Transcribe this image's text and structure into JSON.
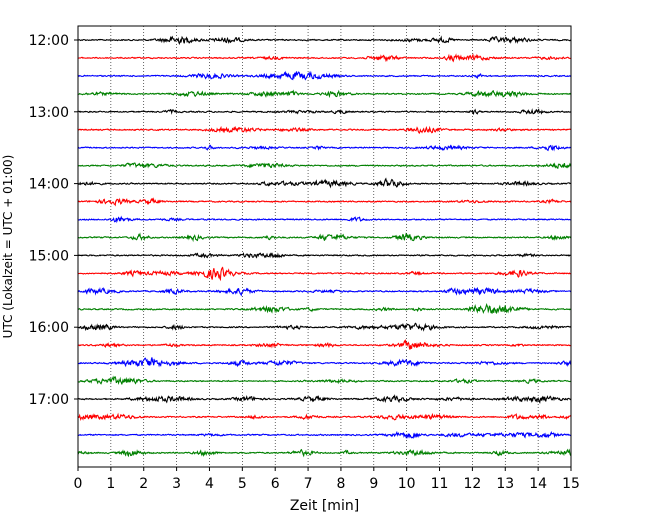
{
  "chart_data": {
    "type": "line",
    "xlabel": "Zeit  [min]",
    "ylabel": "UTC (Lokalzeit = UTC + 01:00)",
    "xlim": [
      0,
      15
    ],
    "x_ticks": [
      "0",
      "1",
      "2",
      "3",
      "4",
      "5",
      "6",
      "7",
      "8",
      "9",
      "10",
      "11",
      "12",
      "13",
      "14",
      "15"
    ],
    "y_ticks": [
      "12:00",
      "13:00",
      "14:00",
      "15:00",
      "16:00",
      "17:00"
    ],
    "grid": "vertical-dotted",
    "trace_interval_min": 15,
    "first_trace": "12:00",
    "trace_count": 24,
    "colors": [
      "#000000",
      "#ff0000",
      "#0000ff",
      "#008000"
    ]
  }
}
